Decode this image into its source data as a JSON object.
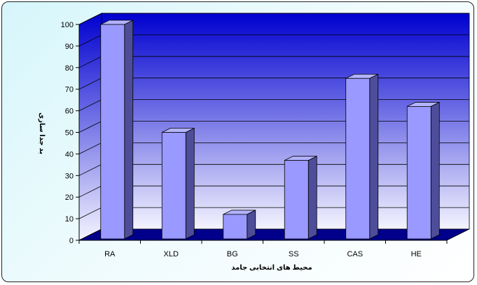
{
  "chart_data": {
    "type": "bar",
    "categories": [
      "RA",
      "XLD",
      "BG",
      "SS",
      "CAS",
      "HE"
    ],
    "values": [
      100,
      50,
      12,
      37,
      75,
      62
    ],
    "title": "",
    "xlabel": "محیط های انتخابی جامد",
    "ylabel": "بد جدا سازی",
    "ylim": [
      0,
      100
    ],
    "yticks": [
      0,
      10,
      20,
      30,
      40,
      50,
      60,
      70,
      80,
      90,
      100
    ],
    "grid": true,
    "legend": "none",
    "three_d": true
  },
  "colors": {
    "bar_front": "#9999ff",
    "bar_side": "#4d4d99",
    "bar_top": "#b3b3ff",
    "wall_top": "#0000d0",
    "wall_bottom": "#f4f4ff",
    "floor": "#00008b"
  }
}
